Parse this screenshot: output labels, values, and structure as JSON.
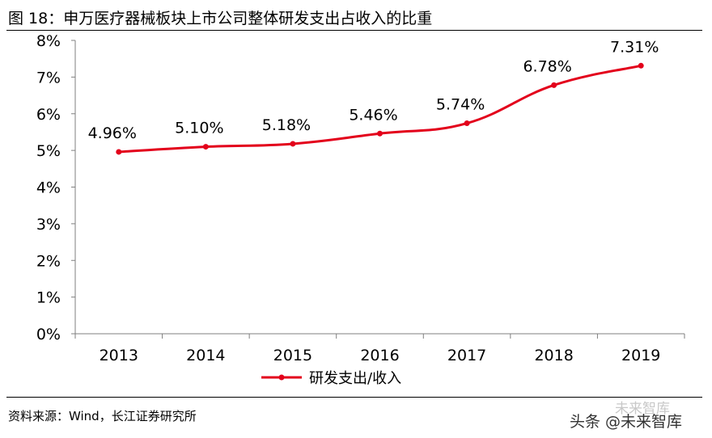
{
  "figure": {
    "title": "图 18：申万医疗器械板块上市公司整体研发支出占收入的比重",
    "source": "资料来源：Wind，长江证券研究所",
    "watermark": "头条 @未来智库",
    "watermark_ghost": "未来智库"
  },
  "chart_data": {
    "type": "line",
    "categories": [
      "2013",
      "2014",
      "2015",
      "2016",
      "2017",
      "2018",
      "2019"
    ],
    "series": [
      {
        "name": "研发支出/收入",
        "values": [
          4.96,
          5.1,
          5.18,
          5.46,
          5.74,
          6.78,
          7.31
        ],
        "data_labels": [
          "4.96%",
          "5.10%",
          "5.18%",
          "5.46%",
          "5.74%",
          "6.78%",
          "7.31%"
        ],
        "color": "#E3001B",
        "smooth": true,
        "markers": true
      }
    ],
    "ylim": [
      0,
      8
    ],
    "yticks": [
      0,
      1,
      2,
      3,
      4,
      5,
      6,
      7,
      8
    ],
    "ytick_labels": [
      "0%",
      "1%",
      "2%",
      "3%",
      "4%",
      "5%",
      "6%",
      "7%",
      "8%"
    ],
    "grid": false,
    "legend": "bottom-center"
  }
}
